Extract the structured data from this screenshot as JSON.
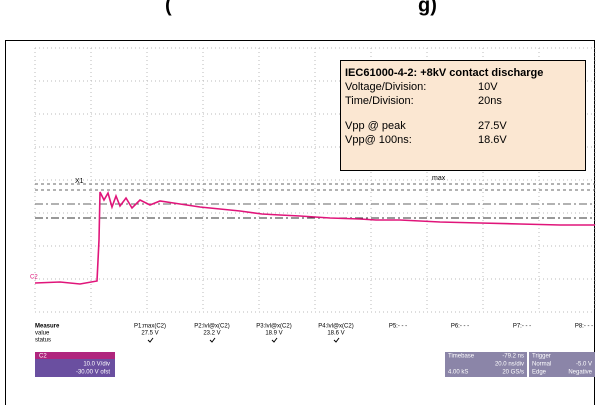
{
  "header": {
    "title_left": "(",
    "title_right": "g)"
  },
  "info_box": {
    "title": "IEC61000-4-2: +8kV contact discharge",
    "rows": [
      [
        "Voltage/Division:",
        "10V"
      ],
      [
        "Time/Division:",
        "20ns"
      ],
      [
        "Vpp @ peak",
        "27.5V"
      ],
      [
        "Vpp@ 100ns:",
        "18.6V"
      ]
    ]
  },
  "cursors": {
    "x1": "X1",
    "max": "max",
    "channel": "C2"
  },
  "measure": {
    "row_labels": [
      "Measure",
      "value",
      "status"
    ],
    "params": [
      [
        "P1:max(C2)",
        "27.5 V"
      ],
      [
        "P2:lvl@x(C2)",
        "23.2 V"
      ],
      [
        "P3:lvl@x(C2)",
        "18.9 V"
      ],
      [
        "P4:lvl@x(C2)",
        "18.6 V"
      ],
      [
        "P5:- - -",
        ""
      ],
      [
        "P6:- - -",
        ""
      ],
      [
        "P7:- - -",
        ""
      ],
      [
        "P8:- - -",
        ""
      ]
    ]
  },
  "channel_box": {
    "name": "C2",
    "scale": "10.0 V/div",
    "offset": "-30.00 V ofst"
  },
  "timebase": {
    "label": "Timebase",
    "delay": "-79.2 ns",
    "div": "20.0 ns/div",
    "samples": "4.00 kS",
    "rate": "20 GS/s"
  },
  "trigger": {
    "label": "Trigger",
    "level": "-5.0 V",
    "mode": "Normal",
    "type": "Edge",
    "slope": "Negative"
  }
}
